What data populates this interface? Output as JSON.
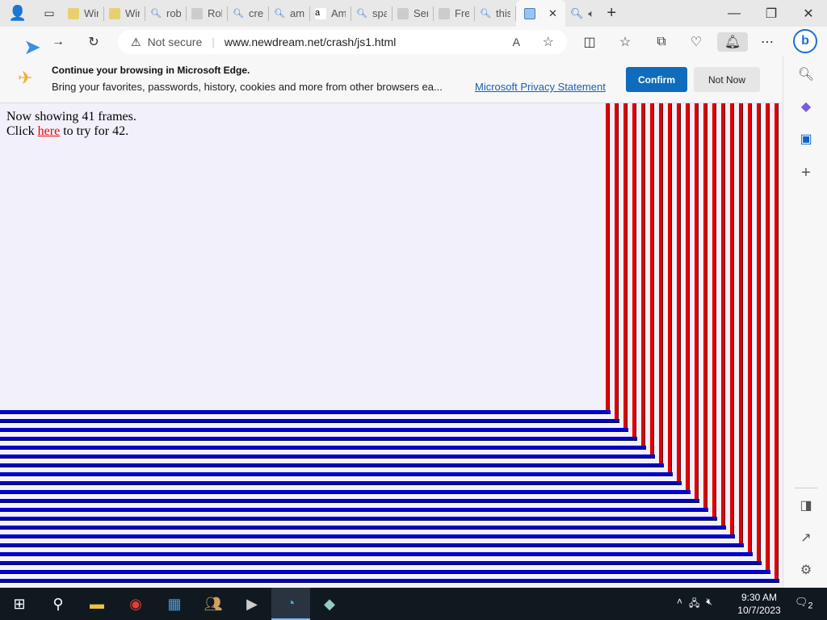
{
  "tabs": [
    {
      "label": "Wir",
      "icon": "window-icon"
    },
    {
      "label": "Wir",
      "icon": "window-icon"
    },
    {
      "label": "rob",
      "icon": "search-icon"
    },
    {
      "label": "Rob",
      "icon": "page-icon"
    },
    {
      "label": "crec",
      "icon": "search-icon"
    },
    {
      "label": "am",
      "icon": "search-icon"
    },
    {
      "label": "Am",
      "icon": "amazon-icon"
    },
    {
      "label": "spa",
      "icon": "search-icon"
    },
    {
      "label": "Ser",
      "icon": "page-icon"
    },
    {
      "label": "Fre",
      "icon": "page-icon"
    },
    {
      "label": "this",
      "icon": "search-icon"
    }
  ],
  "active_tab": {
    "label": "",
    "close": "✕"
  },
  "address": {
    "security": "Not secure",
    "url": "www.newdream.net/crash/js1.html"
  },
  "banner": {
    "title": "Continue your browsing in Microsoft Edge.",
    "text": "Bring your favorites, passwords, history, cookies and more from other browsers ea...",
    "link": "Microsoft Privacy Statement",
    "confirm": "Confirm",
    "not_now": "Not Now"
  },
  "page": {
    "line1": "Now showing 41 frames.",
    "line2_pre": "Click ",
    "link": "here",
    "line2_post": " to try for 42."
  },
  "frames": {
    "nesting_levels": 20,
    "vertical_color": "#e00000",
    "horizontal_color": "#0000cc"
  },
  "taskbar": {
    "time": "9:30 AM",
    "date": "10/7/2023",
    "notifications": "2"
  }
}
